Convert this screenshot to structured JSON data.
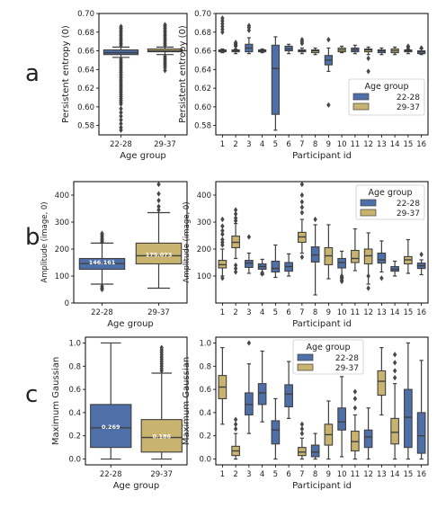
{
  "colors": {
    "g1": "#4f6fa9",
    "g2": "#c8b46e",
    "edge": "#3f3f3f",
    "frame": "#000000"
  },
  "panel_letters": [
    "a",
    "b",
    "c"
  ],
  "chart_data": [
    {
      "id": "a_left",
      "type": "box",
      "ylabel": "Persistent entropy (0)",
      "xlabel": "Age group",
      "categories": [
        "22-28",
        "29-37"
      ],
      "ylim": [
        0.57,
        0.7
      ],
      "yticks": [
        0.58,
        0.6,
        0.62,
        0.64,
        0.66,
        0.68,
        0.7
      ],
      "boxes": [
        {
          "group": "22-28",
          "whislo": 0.653,
          "q1": 0.656,
          "med": 0.658,
          "q3": 0.661,
          "whishi": 0.664,
          "fliers": [
            0.666,
            0.668,
            0.67,
            0.672,
            0.674,
            0.676,
            0.678,
            0.68,
            0.682,
            0.684,
            0.686,
            0.651,
            0.649,
            0.647,
            0.645,
            0.643,
            0.641,
            0.639,
            0.637,
            0.635,
            0.633,
            0.631,
            0.629,
            0.627,
            0.625,
            0.623,
            0.621,
            0.619,
            0.617,
            0.615,
            0.613,
            0.611,
            0.609,
            0.607,
            0.605,
            0.603,
            0.598,
            0.594,
            0.59,
            0.586,
            0.582,
            0.578,
            0.575
          ]
        },
        {
          "group": "29-37",
          "whislo": 0.656,
          "q1": 0.659,
          "med": 0.66,
          "q3": 0.662,
          "whishi": 0.664,
          "fliers": [
            0.666,
            0.668,
            0.67,
            0.672,
            0.674,
            0.676,
            0.678,
            0.68,
            0.682,
            0.684,
            0.686,
            0.688,
            0.654,
            0.652,
            0.65,
            0.648,
            0.646,
            0.644,
            0.642,
            0.639
          ]
        }
      ]
    },
    {
      "id": "a_right",
      "type": "box",
      "ylabel": "Persistent entropy (0)",
      "xlabel": "Participant id",
      "categories": [
        "1",
        "2",
        "3",
        "4",
        "5",
        "6",
        "7",
        "8",
        "9",
        "10",
        "11",
        "12",
        "13",
        "14",
        "15",
        "16"
      ],
      "ylim": [
        0.57,
        0.7
      ],
      "yticks": [
        0.58,
        0.6,
        0.62,
        0.64,
        0.66,
        0.68,
        0.7
      ],
      "legend": {
        "title": "Age group",
        "entries": [
          "22-28",
          "29-37"
        ],
        "loc": "lower right"
      },
      "boxes": [
        {
          "pid": "1",
          "group": "22-28",
          "whislo": 0.658,
          "q1": 0.659,
          "med": 0.66,
          "q3": 0.661,
          "whishi": 0.662,
          "fliers": [
            0.68,
            0.683,
            0.686,
            0.689,
            0.692,
            0.695
          ]
        },
        {
          "pid": "2",
          "group": "29-37",
          "whislo": 0.657,
          "q1": 0.659,
          "med": 0.66,
          "q3": 0.661,
          "whishi": 0.662,
          "fliers": [
            0.665,
            0.666,
            0.667,
            0.668,
            0.669
          ]
        },
        {
          "pid": "3",
          "group": "22-28",
          "whislo": 0.657,
          "q1": 0.659,
          "med": 0.663,
          "q3": 0.667,
          "whishi": 0.674,
          "fliers": [
            0.682,
            0.685,
            0.687
          ]
        },
        {
          "pid": "4",
          "group": "22-28",
          "whislo": 0.658,
          "q1": 0.659,
          "med": 0.66,
          "q3": 0.661,
          "whishi": 0.662,
          "fliers": []
        },
        {
          "pid": "5",
          "group": "22-28",
          "whislo": 0.575,
          "q1": 0.592,
          "med": 0.641,
          "q3": 0.666,
          "whishi": 0.675,
          "fliers": []
        },
        {
          "pid": "6",
          "group": "22-28",
          "whislo": 0.657,
          "q1": 0.66,
          "med": 0.662,
          "q3": 0.665,
          "whishi": 0.667,
          "fliers": []
        },
        {
          "pid": "7",
          "group": "29-37",
          "whislo": 0.657,
          "q1": 0.659,
          "med": 0.66,
          "q3": 0.661,
          "whishi": 0.663,
          "fliers": [
            0.668,
            0.67,
            0.672
          ]
        },
        {
          "pid": "8",
          "group": "29-37",
          "whislo": 0.656,
          "q1": 0.658,
          "med": 0.66,
          "q3": 0.661,
          "whishi": 0.663,
          "fliers": []
        },
        {
          "pid": "9",
          "group": "22-28",
          "whislo": 0.638,
          "q1": 0.645,
          "med": 0.65,
          "q3": 0.655,
          "whishi": 0.663,
          "fliers": [
            0.602,
            0.672
          ]
        },
        {
          "pid": "10",
          "group": "29-37",
          "whislo": 0.658,
          "q1": 0.659,
          "med": 0.661,
          "q3": 0.663,
          "whishi": 0.665,
          "fliers": []
        },
        {
          "pid": "11",
          "group": "22-28",
          "whislo": 0.657,
          "q1": 0.659,
          "med": 0.661,
          "q3": 0.663,
          "whishi": 0.666,
          "fliers": []
        },
        {
          "pid": "12",
          "group": "29-37",
          "whislo": 0.656,
          "q1": 0.659,
          "med": 0.661,
          "q3": 0.662,
          "whishi": 0.664,
          "fliers": [
            0.638,
            0.652
          ]
        },
        {
          "pid": "13",
          "group": "22-28",
          "whislo": 0.656,
          "q1": 0.658,
          "med": 0.66,
          "q3": 0.661,
          "whishi": 0.663,
          "fliers": []
        },
        {
          "pid": "14",
          "group": "29-37",
          "whislo": 0.656,
          "q1": 0.658,
          "med": 0.66,
          "q3": 0.662,
          "whishi": 0.664,
          "fliers": []
        },
        {
          "pid": "15",
          "group": "29-37",
          "whislo": 0.657,
          "q1": 0.659,
          "med": 0.66,
          "q3": 0.661,
          "whishi": 0.662,
          "fliers": [
            0.664,
            0.665
          ]
        },
        {
          "pid": "16",
          "group": "22-28",
          "whislo": 0.656,
          "q1": 0.657,
          "med": 0.659,
          "q3": 0.66,
          "whishi": 0.662,
          "fliers": [
            0.663
          ]
        }
      ]
    },
    {
      "id": "b_left",
      "type": "box",
      "ylabel": "Amplitude (image, 0)",
      "xlabel": "Age group",
      "categories": [
        "22-28",
        "29-37"
      ],
      "ylim": [
        0,
        450
      ],
      "yticks": [
        0,
        100,
        200,
        300,
        400
      ],
      "boxes": [
        {
          "group": "22-28",
          "whislo": 70,
          "q1": 125,
          "med": 146.161,
          "q3": 165,
          "whishi": 222,
          "med_label": "146.161",
          "fliers": [
            226,
            232,
            238,
            245,
            252,
            258,
            62,
            55,
            50
          ]
        },
        {
          "group": "29-37",
          "whislo": 55,
          "q1": 145,
          "med": 175.073,
          "q3": 222,
          "whishi": 335,
          "med_label": "175.073",
          "fliers": [
            345,
            358,
            380,
            405,
            440
          ]
        }
      ]
    },
    {
      "id": "b_right",
      "type": "box",
      "ylabel": "Amplitude (image, 0)",
      "xlabel": "Participant id",
      "categories": [
        "1",
        "2",
        "3",
        "4",
        "5",
        "6",
        "7",
        "8",
        "9",
        "10",
        "11",
        "12",
        "13",
        "14",
        "15",
        "16"
      ],
      "ylim": [
        0,
        450
      ],
      "yticks": [
        100,
        200,
        300,
        400
      ],
      "legend": {
        "title": "Age group",
        "entries": [
          "22-28",
          "29-37"
        ],
        "loc": "upper right"
      },
      "boxes": [
        {
          "pid": "1",
          "group": "29-37",
          "whislo": 100,
          "q1": 130,
          "med": 142,
          "q3": 158,
          "whishi": 200,
          "fliers": [
            215,
            225,
            235,
            255,
            268,
            285,
            310,
            92
          ]
        },
        {
          "pid": "2",
          "group": "29-37",
          "whislo": 165,
          "q1": 205,
          "med": 225,
          "q3": 248,
          "whishi": 295,
          "fliers": [
            305,
            315,
            330,
            345,
            140,
            128,
            115
          ]
        },
        {
          "pid": "3",
          "group": "22-28",
          "whislo": 110,
          "q1": 132,
          "med": 148,
          "q3": 158,
          "whishi": 185,
          "fliers": [
            245
          ]
        },
        {
          "pid": "4",
          "group": "22-28",
          "whislo": 105,
          "q1": 125,
          "med": 135,
          "q3": 145,
          "whishi": 162,
          "fliers": [
            108,
            112
          ]
        },
        {
          "pid": "5",
          "group": "22-28",
          "whislo": 95,
          "q1": 115,
          "med": 128,
          "q3": 155,
          "whishi": 215,
          "fliers": []
        },
        {
          "pid": "6",
          "group": "22-28",
          "whislo": 100,
          "q1": 118,
          "med": 135,
          "q3": 150,
          "whishi": 182,
          "fliers": []
        },
        {
          "pid": "7",
          "group": "29-37",
          "whislo": 185,
          "q1": 225,
          "med": 245,
          "q3": 262,
          "whishi": 310,
          "fliers": [
            335,
            355,
            375,
            400,
            440,
            170
          ]
        },
        {
          "pid": "8",
          "group": "22-28",
          "whislo": 30,
          "q1": 152,
          "med": 178,
          "q3": 208,
          "whishi": 290,
          "fliers": [
            310
          ]
        },
        {
          "pid": "9",
          "group": "29-37",
          "whislo": 90,
          "q1": 142,
          "med": 175,
          "q3": 205,
          "whishi": 290,
          "fliers": []
        },
        {
          "pid": "10",
          "group": "22-28",
          "whislo": 95,
          "q1": 130,
          "med": 150,
          "q3": 165,
          "whishi": 192,
          "fliers": [
            80,
            85,
            92,
            100
          ]
        },
        {
          "pid": "11",
          "group": "29-37",
          "whislo": 120,
          "q1": 150,
          "med": 165,
          "q3": 195,
          "whishi": 275,
          "fliers": []
        },
        {
          "pid": "12",
          "group": "29-37",
          "whislo": 70,
          "q1": 145,
          "med": 175,
          "q3": 200,
          "whishi": 260,
          "fliers": [
            55,
            100
          ]
        },
        {
          "pid": "13",
          "group": "22-28",
          "whislo": 115,
          "q1": 148,
          "med": 160,
          "q3": 185,
          "whishi": 230,
          "fliers": [
            92
          ]
        },
        {
          "pid": "14",
          "group": "22-28",
          "whislo": 100,
          "q1": 118,
          "med": 125,
          "q3": 135,
          "whishi": 155,
          "fliers": []
        },
        {
          "pid": "15",
          "group": "29-37",
          "whislo": 110,
          "q1": 145,
          "med": 160,
          "q3": 172,
          "whishi": 235,
          "fliers": []
        },
        {
          "pid": "16",
          "group": "22-28",
          "whislo": 105,
          "q1": 128,
          "med": 138,
          "q3": 148,
          "whishi": 160,
          "fliers": [
            180
          ]
        }
      ]
    },
    {
      "id": "c_left",
      "type": "box",
      "ylabel": "Maximum Gaussian",
      "xlabel": "Age group",
      "categories": [
        "22-28",
        "29-37"
      ],
      "ylim": [
        -0.05,
        1.05
      ],
      "yticks": [
        0.0,
        0.2,
        0.4,
        0.6,
        0.8,
        1.0
      ],
      "boxes": [
        {
          "group": "22-28",
          "whislo": 0.0,
          "q1": 0.1,
          "med": 0.269,
          "q3": 0.47,
          "whishi": 1.0,
          "med_label": "0.269",
          "fliers": []
        },
        {
          "group": "29-37",
          "whislo": 0.0,
          "q1": 0.06,
          "med": 0.186,
          "q3": 0.34,
          "whishi": 0.74,
          "med_label": "0.186",
          "fliers": [
            0.76,
            0.78,
            0.8,
            0.82,
            0.84,
            0.86,
            0.88,
            0.9,
            0.92,
            0.94,
            0.96
          ]
        }
      ]
    },
    {
      "id": "c_right",
      "type": "box",
      "ylabel": "Maximum Gaussian",
      "xlabel": "Participant id",
      "categories": [
        "1",
        "2",
        "3",
        "4",
        "5",
        "6",
        "7",
        "8",
        "9",
        "10",
        "11",
        "12",
        "13",
        "14",
        "15",
        "16"
      ],
      "ylim": [
        -0.05,
        1.05
      ],
      "yticks": [
        0.0,
        0.2,
        0.4,
        0.6,
        0.8,
        1.0
      ],
      "legend": {
        "title": "Age group",
        "entries": [
          "22-28",
          "29-37"
        ],
        "loc": "upper left"
      },
      "boxes": [
        {
          "pid": "1",
          "group": "29-37",
          "whislo": 0.3,
          "q1": 0.52,
          "med": 0.62,
          "q3": 0.72,
          "whishi": 0.96,
          "fliers": []
        },
        {
          "pid": "2",
          "group": "29-37",
          "whislo": 0.0,
          "q1": 0.03,
          "med": 0.07,
          "q3": 0.11,
          "whishi": 0.22,
          "fliers": [
            0.26,
            0.3,
            0.34
          ]
        },
        {
          "pid": "3",
          "group": "22-28",
          "whislo": 0.22,
          "q1": 0.38,
          "med": 0.47,
          "q3": 0.57,
          "whishi": 0.82,
          "fliers": [
            1.0
          ]
        },
        {
          "pid": "4",
          "group": "22-28",
          "whislo": 0.32,
          "q1": 0.47,
          "med": 0.57,
          "q3": 0.65,
          "whishi": 0.93,
          "fliers": []
        },
        {
          "pid": "5",
          "group": "22-28",
          "whislo": 0.0,
          "q1": 0.13,
          "med": 0.25,
          "q3": 0.33,
          "whishi": 0.52,
          "fliers": []
        },
        {
          "pid": "6",
          "group": "22-28",
          "whislo": 0.35,
          "q1": 0.45,
          "med": 0.56,
          "q3": 0.64,
          "whishi": 0.84,
          "fliers": []
        },
        {
          "pid": "7",
          "group": "29-37",
          "whislo": 0.0,
          "q1": 0.03,
          "med": 0.06,
          "q3": 0.1,
          "whishi": 0.18,
          "fliers": [
            0.22,
            0.26,
            0.3
          ]
        },
        {
          "pid": "8",
          "group": "22-28",
          "whislo": 0.0,
          "q1": 0.02,
          "med": 0.06,
          "q3": 0.12,
          "whishi": 0.22,
          "fliers": []
        },
        {
          "pid": "9",
          "group": "29-37",
          "whislo": 0.0,
          "q1": 0.12,
          "med": 0.21,
          "q3": 0.3,
          "whishi": 0.5,
          "fliers": []
        },
        {
          "pid": "10",
          "group": "22-28",
          "whislo": 0.02,
          "q1": 0.25,
          "med": 0.32,
          "q3": 0.44,
          "whishi": 0.71,
          "fliers": []
        },
        {
          "pid": "11",
          "group": "29-37",
          "whislo": 0.0,
          "q1": 0.07,
          "med": 0.15,
          "q3": 0.24,
          "whishi": 0.38,
          "fliers": [
            0.44,
            0.52,
            0.58
          ]
        },
        {
          "pid": "12",
          "group": "22-28",
          "whislo": 0.0,
          "q1": 0.1,
          "med": 0.19,
          "q3": 0.25,
          "whishi": 0.44,
          "fliers": []
        },
        {
          "pid": "13",
          "group": "29-37",
          "whislo": 0.38,
          "q1": 0.55,
          "med": 0.67,
          "q3": 0.76,
          "whishi": 0.96,
          "fliers": []
        },
        {
          "pid": "14",
          "group": "29-37",
          "whislo": 0.0,
          "q1": 0.13,
          "med": 0.23,
          "q3": 0.35,
          "whishi": 0.65,
          "fliers": [
            0.7,
            0.76,
            0.83,
            0.9
          ]
        },
        {
          "pid": "15",
          "group": "22-28",
          "whislo": 0.0,
          "q1": 0.1,
          "med": 0.36,
          "q3": 0.6,
          "whishi": 1.0,
          "fliers": []
        },
        {
          "pid": "16",
          "group": "22-28",
          "whislo": 0.0,
          "q1": 0.05,
          "med": 0.2,
          "q3": 0.4,
          "whishi": 0.85,
          "fliers": []
        }
      ]
    }
  ]
}
